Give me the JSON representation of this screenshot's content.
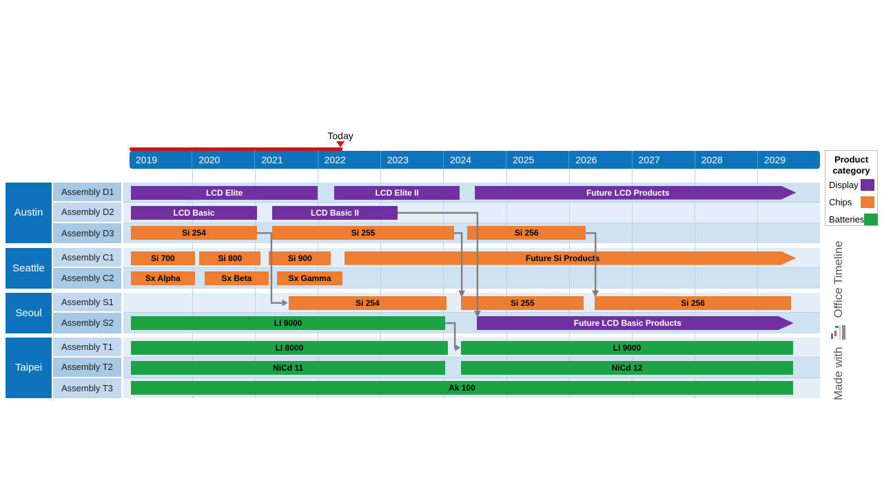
{
  "header": {
    "today_label": "Today",
    "today_position": 2022.36
  },
  "legend": {
    "title": "Product category",
    "items": [
      {
        "label": "Display",
        "color": "#7030a0"
      },
      {
        "label": "Chips",
        "color": "#ed7d31"
      },
      {
        "label": "Batteries",
        "color": "#1ca344"
      }
    ]
  },
  "branding": {
    "made_with": "Made with",
    "brand": "Office Timeline",
    "logo_icon": "office-timeline-logo-icon"
  },
  "chart_data": {
    "type": "gantt-timeline",
    "years": [
      2019,
      2020,
      2021,
      2022,
      2023,
      2024,
      2025,
      2026,
      2027,
      2028,
      2029
    ],
    "axis_range": [
      2019,
      2030
    ],
    "elapsed_line_end": 2022.36,
    "category_colors": {
      "Display": "#7030a0",
      "Chips": "#ed7d31",
      "Batteries": "#1ca344"
    },
    "groups": [
      {
        "name": "Austin",
        "rows": [
          {
            "label": "Assembly D1",
            "bars": [
              {
                "label": "LCD Elite",
                "category": "Display",
                "start": 2019.0,
                "end": 2022.0
              },
              {
                "label": "LCD Elite II",
                "category": "Display",
                "start": 2022.24,
                "end": 2024.26
              },
              {
                "label": "Future LCD Products",
                "category": "Display",
                "start": 2024.48,
                "end": 2029.62,
                "arrow": true
              }
            ]
          },
          {
            "label": "Assembly D2",
            "bars": [
              {
                "label": "LCD Basic",
                "category": "Display",
                "start": 2019.0,
                "end": 2021.03
              },
              {
                "label": "LCD Basic II",
                "category": "Display",
                "start": 2021.25,
                "end": 2023.27
              }
            ]
          },
          {
            "label": "Assembly D3",
            "bars": [
              {
                "label": "Si 254",
                "category": "Chips",
                "start": 2019.0,
                "end": 2021.03
              },
              {
                "label": "Si 255",
                "category": "Chips",
                "start": 2021.25,
                "end": 2024.17
              },
              {
                "label": "Si 256",
                "category": "Chips",
                "start": 2024.36,
                "end": 2026.27
              }
            ]
          }
        ]
      },
      {
        "name": "Seattle",
        "rows": [
          {
            "label": "Assembly C1",
            "bars": [
              {
                "label": "Si 700",
                "category": "Chips",
                "start": 2019.0,
                "end": 2020.04
              },
              {
                "label": "Si 800",
                "category": "Chips",
                "start": 2020.09,
                "end": 2021.09
              },
              {
                "label": "Si 900",
                "category": "Chips",
                "start": 2021.2,
                "end": 2022.21
              },
              {
                "label": "Future Si Products",
                "category": "Chips",
                "start": 2022.4,
                "end": 2029.62,
                "arrow": true
              }
            ]
          },
          {
            "label": "Assembly C2",
            "bars": [
              {
                "label": "Sx Alpha",
                "category": "Chips",
                "start": 2019.0,
                "end": 2020.04
              },
              {
                "label": "Sx Beta",
                "category": "Chips",
                "start": 2020.17,
                "end": 2021.22
              },
              {
                "label": "Sx Gamma",
                "category": "Chips",
                "start": 2021.33,
                "end": 2022.39
              }
            ]
          }
        ]
      },
      {
        "name": "Seoul",
        "rows": [
          {
            "label": "Assembly S1",
            "bars": [
              {
                "label": "Si 254",
                "category": "Chips",
                "start": 2021.51,
                "end": 2024.05
              },
              {
                "label": "Si 255",
                "category": "Chips",
                "start": 2024.26,
                "end": 2026.24
              },
              {
                "label": "Si 256",
                "category": "Chips",
                "start": 2026.39,
                "end": 2029.54
              }
            ]
          },
          {
            "label": "Assembly S2",
            "bars": [
              {
                "label": "LI 9000",
                "category": "Batteries",
                "start": 2019.0,
                "end": 2024.03
              },
              {
                "label": "Future LCD Basic Products",
                "category": "Display",
                "start": 2024.51,
                "end": 2029.58,
                "arrow": true
              }
            ]
          }
        ]
      },
      {
        "name": "Taipei",
        "rows": [
          {
            "label": "Assembly T1",
            "bars": [
              {
                "label": "LI 8000",
                "category": "Batteries",
                "start": 2019.0,
                "end": 2024.07
              },
              {
                "label": "LI 9000",
                "category": "Batteries",
                "start": 2024.26,
                "end": 2029.57
              }
            ]
          },
          {
            "label": "Assembly T2",
            "bars": [
              {
                "label": "NiCd 11",
                "category": "Batteries",
                "start": 2019.0,
                "end": 2024.03
              },
              {
                "label": "NiCd 12",
                "category": "Batteries",
                "start": 2024.26,
                "end": 2029.57
              }
            ]
          },
          {
            "label": "Assembly T3",
            "bars": [
              {
                "label": "Ak 100",
                "category": "Batteries",
                "start": 2019.0,
                "end": 2029.57
              }
            ]
          }
        ]
      }
    ],
    "connectors": [
      {
        "from_row": "Assembly D3",
        "from_bar": "Si 254",
        "to_row": "Assembly S1",
        "to_bar": "Si 254",
        "entry": "left"
      },
      {
        "from_row": "Assembly D3",
        "from_bar": "Si 255",
        "to_row": "Assembly S1",
        "to_bar": "Si 255",
        "entry": "top"
      },
      {
        "from_row": "Assembly D3",
        "from_bar": "Si 256",
        "to_row": "Assembly S1",
        "to_bar": "Si 256",
        "entry": "top"
      },
      {
        "from_row": "Assembly D2",
        "from_bar": "LCD Basic II",
        "to_row": "Assembly S2",
        "to_bar": "Future LCD Basic Products",
        "entry": "top"
      },
      {
        "from_row": "Assembly S2",
        "from_bar": "LI 9000",
        "to_row": "Assembly T1",
        "to_bar": "LI 9000",
        "entry": "left"
      }
    ]
  }
}
